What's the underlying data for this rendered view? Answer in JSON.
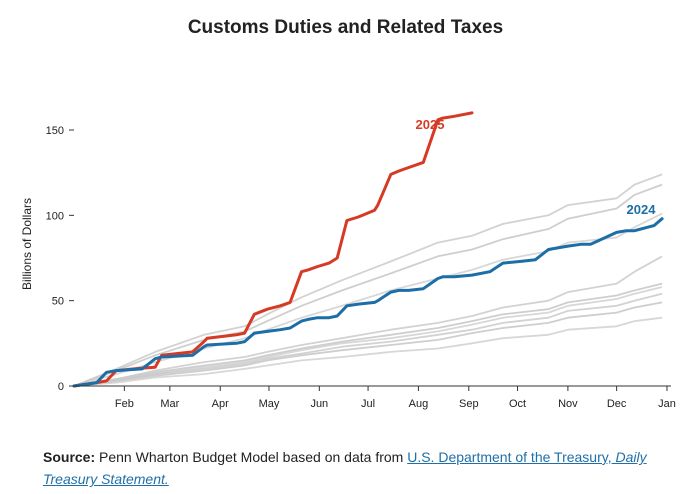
{
  "title": "Customs Duties and Related Taxes",
  "source": {
    "label": "Source:",
    "text": "Penn Wharton Budget Model based on data from",
    "link_text": "U.S. Department of the Treasury,",
    "link_italic": "Daily Treasury Statement."
  },
  "colors": {
    "y2025": "#d63a24",
    "y2024": "#1d6ea6",
    "history": "#c9c9c9",
    "axis": "#333333"
  },
  "chart_data": {
    "type": "line",
    "title": "Customs Duties and Related Taxes",
    "xlabel": "",
    "ylabel": "Billions of Dollars",
    "ylim": [
      0,
      160
    ],
    "yticks": [
      0,
      50,
      100,
      150
    ],
    "xlim": [
      0,
      365
    ],
    "x_unit": "day of year",
    "xtick_labels": [
      {
        "day": 31,
        "label": "Feb"
      },
      {
        "day": 59,
        "label": "Mar"
      },
      {
        "day": 90,
        "label": "Apr"
      },
      {
        "day": 120,
        "label": "May"
      },
      {
        "day": 151,
        "label": "Jun"
      },
      {
        "day": 181,
        "label": "Jul"
      },
      {
        "day": 212,
        "label": "Aug"
      },
      {
        "day": 243,
        "label": "Sep"
      },
      {
        "day": 273,
        "label": "Oct"
      },
      {
        "day": 304,
        "label": "Nov"
      },
      {
        "day": 334,
        "label": "Dec"
      },
      {
        "day": 365,
        "label": "Jan"
      }
    ],
    "grid": false,
    "series": [
      {
        "name": "2025",
        "highlight": true,
        "color": "#d63a24",
        "x": [
          0,
          14,
          20,
          26,
          42,
          50,
          54,
          73,
          80,
          82,
          100,
          105,
          111,
          119,
          127,
          133,
          140,
          144,
          150,
          157,
          162,
          168,
          175,
          185,
          187,
          195,
          200,
          206,
          215,
          224,
          227,
          234,
          245
        ],
        "y": [
          0,
          2,
          3,
          9,
          10.5,
          11,
          18,
          20,
          26,
          28,
          30,
          31,
          42,
          45,
          47,
          49,
          67,
          68,
          70,
          72,
          75,
          97,
          99,
          103,
          106,
          124,
          126,
          128,
          131,
          156,
          157,
          158,
          160
        ]
      },
      {
        "name": "2024",
        "highlight": true,
        "color": "#1d6ea6",
        "x": [
          0,
          14,
          20,
          26,
          42,
          50,
          54,
          73,
          80,
          82,
          100,
          105,
          111,
          119,
          127,
          133,
          140,
          144,
          150,
          157,
          162,
          168,
          175,
          185,
          187,
          195,
          200,
          206,
          215,
          224,
          227,
          234,
          245,
          256,
          264,
          275,
          284,
          292,
          304,
          312,
          318,
          334,
          340,
          345,
          357,
          362
        ],
        "y": [
          0,
          2,
          8,
          9,
          10,
          16,
          17,
          18,
          23,
          24,
          25,
          26,
          31,
          32,
          33,
          34,
          38,
          39,
          40,
          40,
          41,
          47,
          48,
          49,
          50,
          55,
          56,
          56,
          57,
          63,
          64,
          64,
          65,
          67,
          72,
          73,
          74,
          80,
          82,
          83,
          83,
          90,
          91,
          91,
          94,
          98
        ]
      },
      {
        "highlight": false,
        "x": [
          0,
          26,
          50,
          80,
          105,
          119,
          140,
          165,
          195,
          224,
          245,
          264,
          292,
          304,
          334,
          345,
          362
        ],
        "y": [
          0,
          10,
          20,
          30,
          35,
          42,
          52,
          62,
          73,
          84,
          88,
          95,
          100,
          106,
          110,
          118,
          124
        ]
      },
      {
        "highlight": false,
        "x": [
          0,
          26,
          50,
          80,
          105,
          119,
          140,
          165,
          195,
          224,
          245,
          264,
          292,
          304,
          334,
          345,
          362
        ],
        "y": [
          0,
          9,
          18,
          27,
          32,
          38,
          47,
          56,
          66,
          76,
          80,
          86,
          92,
          98,
          104,
          112,
          118
        ]
      },
      {
        "highlight": false,
        "x": [
          0,
          26,
          50,
          80,
          105,
          119,
          140,
          165,
          195,
          224,
          245,
          264,
          292,
          304,
          334,
          345,
          362
        ],
        "y": [
          0,
          7,
          14,
          22,
          28,
          33,
          40,
          47,
          56,
          63,
          68,
          74,
          79,
          84,
          87,
          93,
          101
        ]
      },
      {
        "highlight": false,
        "x": [
          0,
          26,
          50,
          80,
          105,
          119,
          140,
          165,
          195,
          224,
          245,
          264,
          292,
          304,
          334,
          345,
          362
        ],
        "y": [
          0,
          4,
          9,
          14,
          17,
          20,
          24,
          28,
          33,
          37,
          41,
          46,
          50,
          55,
          60,
          67,
          76
        ]
      },
      {
        "highlight": false,
        "x": [
          0,
          26,
          50,
          80,
          105,
          119,
          140,
          165,
          195,
          224,
          245,
          264,
          292,
          304,
          334,
          345,
          362
        ],
        "y": [
          0,
          4,
          8,
          12,
          15,
          18,
          22,
          26,
          30,
          34,
          38,
          42,
          45,
          49,
          53,
          56,
          60
        ]
      },
      {
        "highlight": false,
        "x": [
          0,
          26,
          50,
          80,
          105,
          119,
          140,
          165,
          195,
          224,
          245,
          264,
          292,
          304,
          334,
          345,
          362
        ],
        "y": [
          0,
          4,
          7,
          11,
          14,
          17,
          21,
          25,
          28,
          32,
          36,
          40,
          43,
          47,
          51,
          54,
          58
        ]
      },
      {
        "highlight": false,
        "x": [
          0,
          26,
          50,
          80,
          105,
          119,
          140,
          165,
          195,
          224,
          245,
          264,
          292,
          304,
          334,
          345,
          362
        ],
        "y": [
          0,
          3,
          7,
          10,
          13,
          16,
          19,
          23,
          26,
          30,
          33,
          37,
          40,
          44,
          47,
          50,
          54
        ]
      },
      {
        "highlight": false,
        "x": [
          0,
          26,
          50,
          80,
          105,
          119,
          140,
          165,
          195,
          224,
          245,
          264,
          292,
          304,
          334,
          345,
          362
        ],
        "y": [
          0,
          3,
          6,
          9,
          12,
          15,
          18,
          21,
          24,
          27,
          31,
          34,
          37,
          40,
          43,
          46,
          49
        ]
      },
      {
        "highlight": false,
        "x": [
          0,
          26,
          50,
          80,
          105,
          119,
          140,
          165,
          195,
          224,
          245,
          264,
          292,
          304,
          334,
          345,
          362
        ],
        "y": [
          0,
          2,
          5,
          7,
          10,
          12,
          15,
          17,
          20,
          22,
          25,
          28,
          30,
          33,
          35,
          38,
          40
        ]
      }
    ],
    "annotations": [
      {
        "text": "2025",
        "series": "2025",
        "color": "#d63a24"
      },
      {
        "text": "2024",
        "series": "2024",
        "color": "#1d6ea6"
      }
    ]
  }
}
